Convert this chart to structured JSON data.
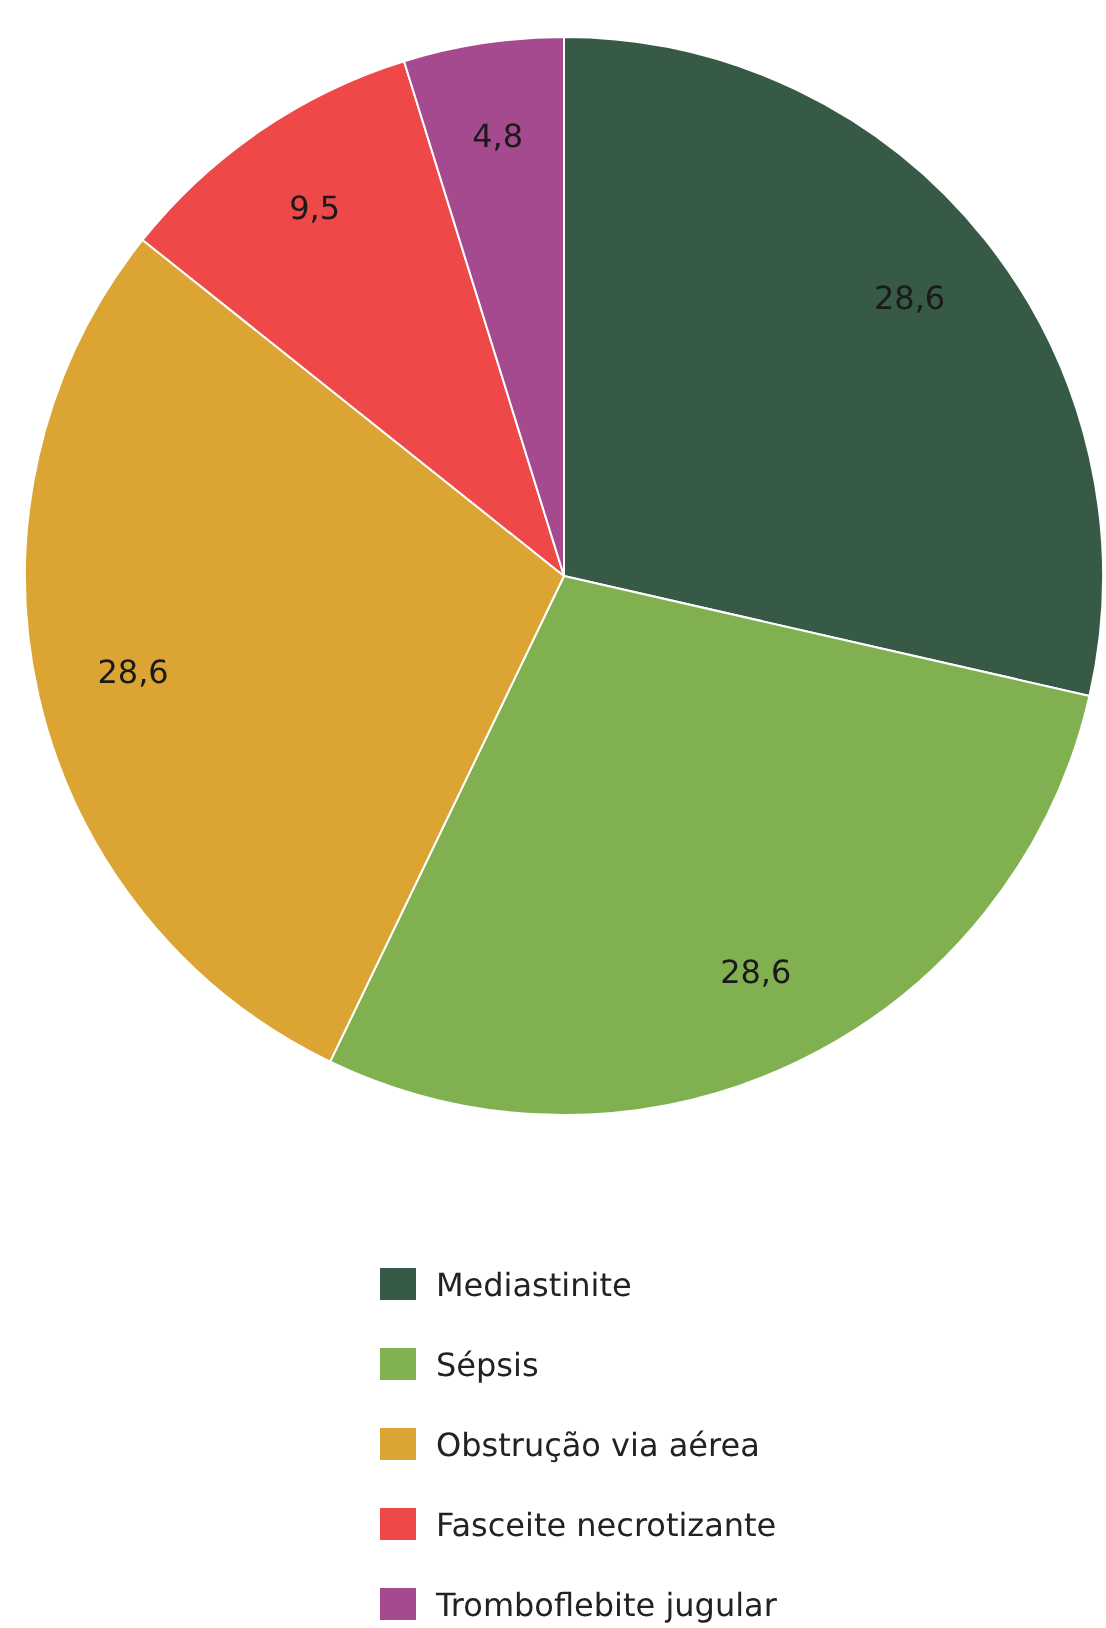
{
  "chart_data": {
    "type": "pie",
    "categories": [
      "Mediastinite",
      "Sépsis",
      "Obstrução via aérea",
      "Fasceite necrotizante",
      "Tromboflebite jugular"
    ],
    "values": [
      28.6,
      28.6,
      28.6,
      9.5,
      4.8
    ],
    "value_labels": [
      "28,6",
      "28,6",
      "28,6",
      "9,5",
      "4,8"
    ],
    "colors": [
      "#375a47",
      "#80b050",
      "#dca432",
      "#ee4848",
      "#a54a8f"
    ],
    "legend": "bottom"
  }
}
